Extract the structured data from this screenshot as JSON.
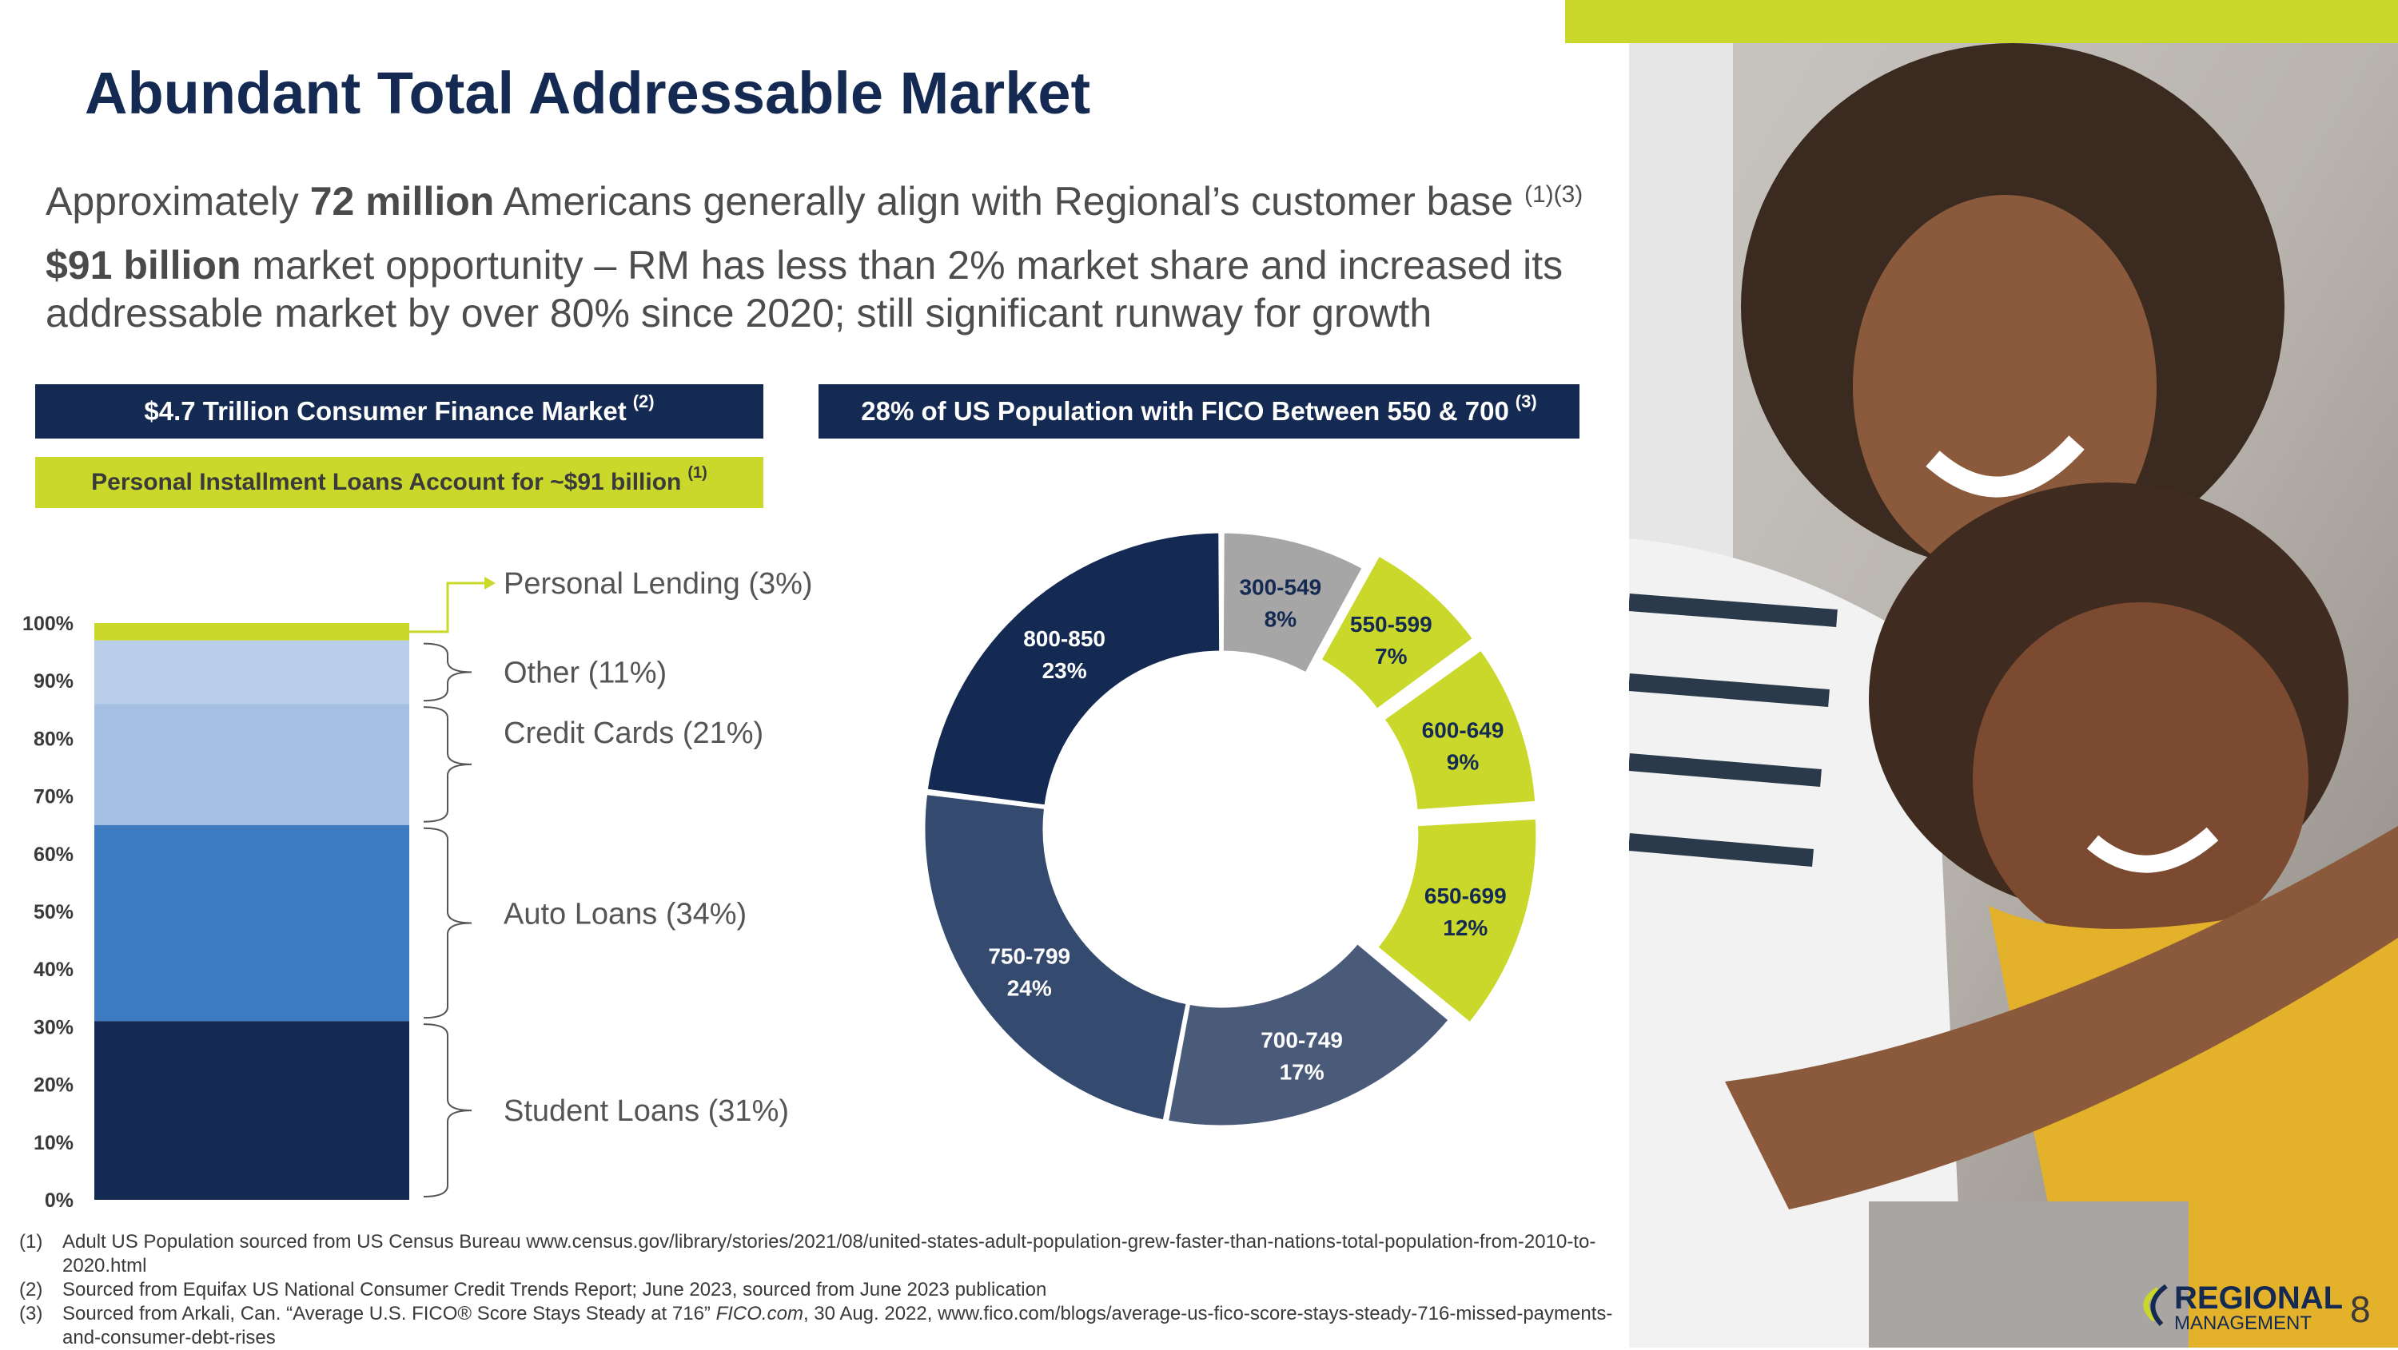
{
  "slide": {
    "title": "Abundant Total Addressable Market",
    "page_number": "8",
    "accent_color": "#c9d82b",
    "brand_color": "#142a52"
  },
  "intro": {
    "line1_pre": "Approximately ",
    "line1_bold": "72 million",
    "line1_post": " Americans generally align with Regional’s customer base ",
    "line1_sup": "(1)(3)",
    "line2_bold": "$91 billion",
    "line2_post": " market opportunity – RM has less than 2% market share and increased its addressable market by over 80% since 2020; still significant runway for growth"
  },
  "banners": {
    "left": {
      "text": "$4.7 Trillion Consumer Finance Market",
      "sup": "(2)"
    },
    "left_sub": {
      "text": "Personal Installment Loans Account for ~$91 billion",
      "sup": "(1)"
    },
    "right": {
      "text": "28% of US Population with FICO Between 550 & 700",
      "sup": "(3)"
    }
  },
  "chart_data": [
    {
      "type": "bar",
      "stacked": true,
      "ylim": [
        0,
        100
      ],
      "yticks": [
        "0%",
        "10%",
        "20%",
        "30%",
        "40%",
        "50%",
        "60%",
        "70%",
        "80%",
        "90%",
        "100%"
      ],
      "series": [
        {
          "name": "Student Loans (31%)",
          "value": 31,
          "color": "#142a52"
        },
        {
          "name": "Auto Loans (34%)",
          "value": 34,
          "color": "#3f7bc1"
        },
        {
          "name": "Credit Cards (21%)",
          "value": 21,
          "color": "#a5c0e3"
        },
        {
          "name": "Other (11%)",
          "value": 11,
          "color": "#b9cde9"
        },
        {
          "name": "Personal Lending (3%)",
          "value": 3,
          "color": "#c9d82b"
        }
      ]
    },
    {
      "type": "pie",
      "donut": true,
      "slices": [
        {
          "label": "300-549",
          "pct_label": "8%",
          "value": 8,
          "color": "#a6a6a6",
          "text_color": "#142a52",
          "exploded": false
        },
        {
          "label": "550-599",
          "pct_label": "7%",
          "value": 7,
          "color": "#c9d82b",
          "text_color": "#142a52",
          "exploded": true
        },
        {
          "label": "600-649",
          "pct_label": "9%",
          "value": 9,
          "color": "#c9d82b",
          "text_color": "#142a52",
          "exploded": true
        },
        {
          "label": "650-699",
          "pct_label": "12%",
          "value": 12,
          "color": "#c9d82b",
          "text_color": "#142a52",
          "exploded": true
        },
        {
          "label": "700-749",
          "pct_label": "17%",
          "value": 17,
          "color": "#4a5b7a",
          "text_color": "#ffffff",
          "exploded": false
        },
        {
          "label": "750-799",
          "pct_label": "24%",
          "value": 24,
          "color": "#344a6e",
          "text_color": "#ffffff",
          "exploded": false
        },
        {
          "label": "800-850",
          "pct_label": "23%",
          "value": 23,
          "color": "#142a52",
          "text_color": "#ffffff",
          "exploded": false
        }
      ]
    }
  ],
  "footnotes": [
    {
      "num": "(1)",
      "text": "Adult US Population sourced from US Census Bureau www.census.gov/library/stories/2021/08/united-states-adult-population-grew-faster-than-nations-total-population-from-2010-to-2020.html"
    },
    {
      "num": "(2)",
      "text": "Sourced from Equifax US National Consumer Credit Trends Report; June 2023, sourced from June 2023 publication"
    },
    {
      "num": "(3)",
      "text_pre": "Sourced from Arkali, Can. “Average U.S. FICO® Score Stays Steady at 716” ",
      "text_italic": "FICO.com",
      "text_post": ", 30 Aug. 2022, www.fico.com/blogs/average-us-fico-score-stays-steady-716-missed-payments-and-consumer-debt-rises"
    }
  ],
  "logo": {
    "line1": "REGIONAL",
    "line2": "MANAGEMENT"
  }
}
